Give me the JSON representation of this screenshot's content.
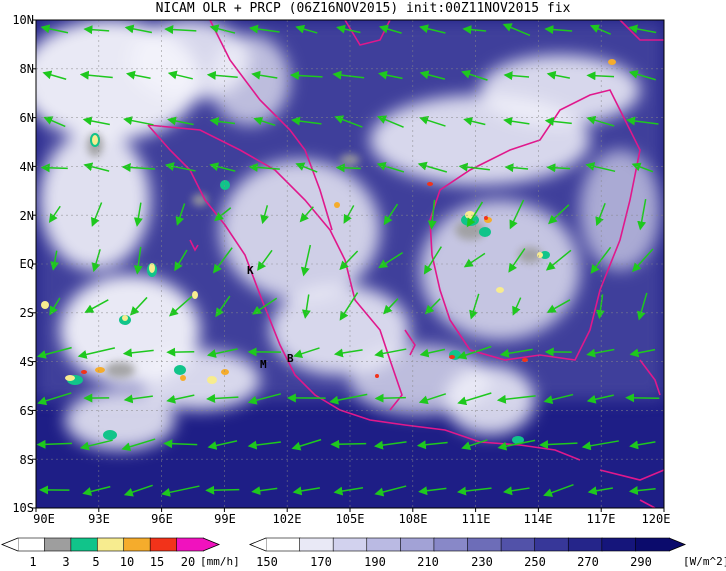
{
  "title": "NICAM OLR + PRCP (06Z16NOV2015) init:00Z11NOV2015 fix",
  "lat_labels": [
    "10N",
    "8N",
    "6N",
    "4N",
    "2N",
    "EQ",
    "2S",
    "4S",
    "6S",
    "8S",
    "10S"
  ],
  "lon_labels": [
    "90E",
    "93E",
    "96E",
    "99E",
    "102E",
    "105E",
    "108E",
    "111E",
    "114E",
    "117E",
    "120E"
  ],
  "place_labels": [
    "K",
    "M",
    "B"
  ],
  "precip_colorbar": {
    "labels": [
      "1",
      "3",
      "5",
      "10",
      "15",
      "20"
    ],
    "unit": "[mm/h]",
    "colors": [
      "#ffffff",
      "#9e9e9e",
      "#11c48a",
      "#f7ec8f",
      "#f5ac2c",
      "#f2331a",
      "#f012be"
    ]
  },
  "olr_colorbar": {
    "labels": [
      "150",
      "170",
      "190",
      "210",
      "230",
      "250",
      "270",
      "290"
    ],
    "unit": "[W/m^2]",
    "colors": [
      "#ffffff",
      "#e9e9f6",
      "#d2d2ee",
      "#babae3",
      "#a2a2d6",
      "#8888c8",
      "#6d6db8",
      "#5252a9",
      "#373799",
      "#25258a",
      "#15157b",
      "#0b0b6c"
    ]
  },
  "colors": {
    "ocean": "#1e1e86",
    "cloud": "#f2f2fa",
    "coast": "#e0188c",
    "wind": "#1ec81e",
    "grid": "#888888"
  }
}
